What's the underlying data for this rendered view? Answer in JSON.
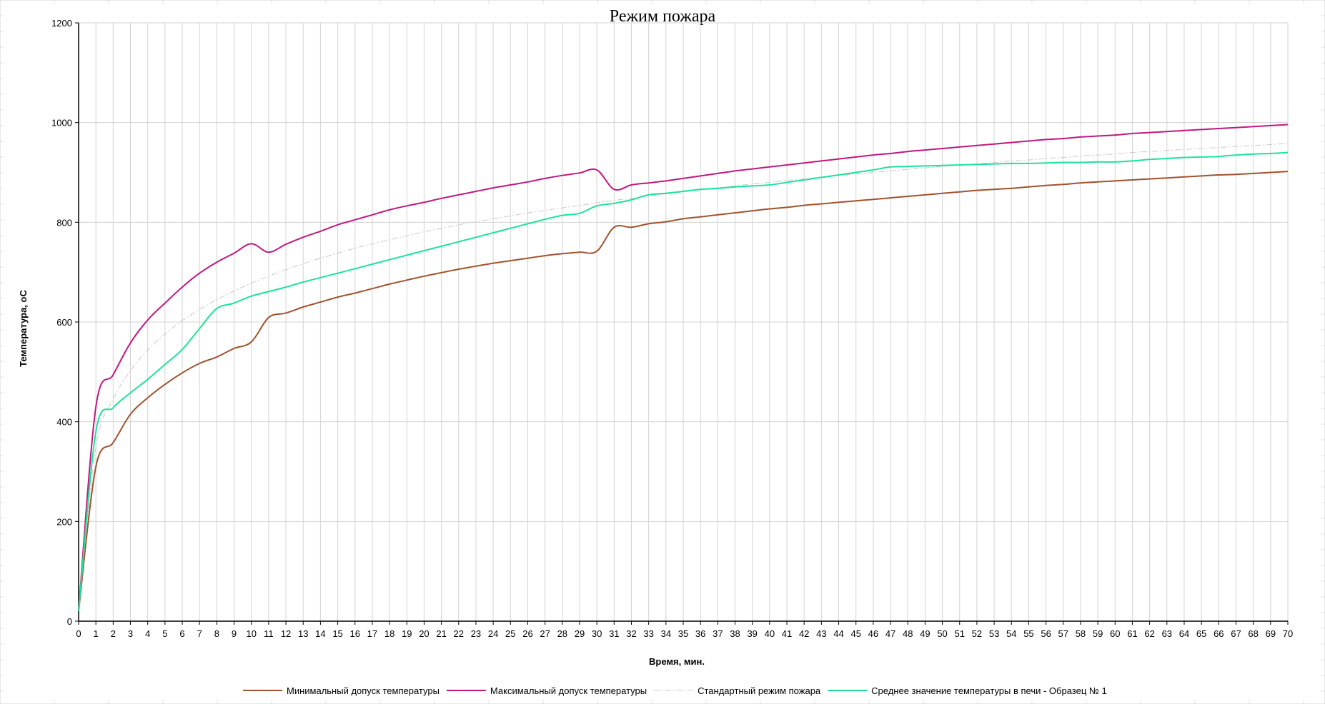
{
  "chart_data": {
    "type": "line",
    "title": "Режим пожара",
    "xlabel": "Время, мин.",
    "ylabel": "Температура, оС",
    "xlim": [
      0,
      70
    ],
    "ylim": [
      0,
      1200
    ],
    "x_ticks": [
      0,
      1,
      2,
      3,
      4,
      5,
      6,
      7,
      8,
      9,
      10,
      11,
      12,
      13,
      14,
      15,
      16,
      17,
      18,
      19,
      20,
      21,
      22,
      23,
      24,
      25,
      26,
      27,
      28,
      29,
      30,
      31,
      32,
      33,
      34,
      35,
      36,
      37,
      38,
      39,
      40,
      41,
      42,
      43,
      44,
      45,
      46,
      47,
      48,
      49,
      50,
      51,
      52,
      53,
      54,
      55,
      56,
      57,
      58,
      59,
      60,
      61,
      62,
      63,
      64,
      65,
      66,
      67,
      68,
      69,
      70
    ],
    "y_ticks": [
      0,
      200,
      400,
      600,
      800,
      1000,
      1200
    ],
    "grid": true,
    "legend_position": "bottom",
    "series": [
      {
        "name": "Минимальный допуск температуры",
        "color": "#a0522d",
        "style": "solid",
        "x": [
          0,
          1,
          2,
          3,
          4,
          5,
          6,
          7,
          8,
          9,
          10,
          11,
          12,
          13,
          14,
          15,
          16,
          17,
          18,
          19,
          20,
          21,
          22,
          23,
          24,
          25,
          26,
          27,
          28,
          29,
          30,
          31,
          32,
          33,
          34,
          35,
          36,
          37,
          38,
          39,
          40,
          41,
          42,
          43,
          44,
          45,
          46,
          47,
          48,
          49,
          50,
          51,
          52,
          53,
          54,
          55,
          56,
          57,
          58,
          59,
          60,
          61,
          62,
          63,
          64,
          65,
          66,
          67,
          68,
          69,
          70
        ],
        "values": [
          20,
          310,
          358,
          415,
          448,
          475,
          498,
          517,
          530,
          547,
          560,
          609,
          618,
          630,
          640,
          650,
          658,
          667,
          676,
          684,
          692,
          699,
          706,
          712,
          718,
          723,
          728,
          733,
          737,
          740,
          742,
          790,
          790,
          797,
          801,
          807,
          811,
          815,
          819,
          823,
          827,
          830,
          834,
          837,
          840,
          843,
          846,
          849,
          852,
          855,
          858,
          861,
          864,
          866,
          868,
          871,
          874,
          876,
          879,
          881,
          883,
          885,
          887,
          889,
          891,
          893,
          895,
          896,
          898,
          900,
          902
        ]
      },
      {
        "name": "Максимальный допуск температуры",
        "color": "#c0187f",
        "style": "solid",
        "x": [
          0,
          1,
          2,
          3,
          4,
          5,
          6,
          7,
          8,
          9,
          10,
          11,
          12,
          13,
          14,
          15,
          16,
          17,
          18,
          19,
          20,
          21,
          22,
          23,
          24,
          25,
          26,
          27,
          28,
          29,
          30,
          31,
          32,
          33,
          34,
          35,
          36,
          37,
          38,
          39,
          40,
          41,
          42,
          43,
          44,
          45,
          46,
          47,
          48,
          49,
          50,
          51,
          52,
          53,
          54,
          55,
          56,
          57,
          58,
          59,
          60,
          61,
          62,
          63,
          64,
          65,
          66,
          67,
          68,
          69,
          70
        ],
        "values": [
          20,
          430,
          494,
          558,
          604,
          638,
          670,
          698,
          720,
          738,
          757,
          740,
          756,
          770,
          782,
          795,
          805,
          815,
          825,
          833,
          840,
          848,
          855,
          862,
          869,
          875,
          881,
          888,
          894,
          899,
          905,
          866,
          875,
          879,
          883,
          888,
          893,
          898,
          903,
          907,
          911,
          915,
          919,
          923,
          927,
          931,
          935,
          938,
          942,
          945,
          948,
          951,
          954,
          957,
          960,
          963,
          966,
          968,
          971,
          973,
          975,
          978,
          980,
          982,
          984,
          986,
          988,
          990,
          992,
          994,
          996
        ]
      },
      {
        "name": "Стандартный режим пожара",
        "color": "#c8c8c8",
        "style": "dash-dot",
        "x": [
          0,
          1,
          2,
          3,
          4,
          5,
          6,
          7,
          8,
          9,
          10,
          11,
          12,
          13,
          14,
          15,
          16,
          17,
          18,
          19,
          20,
          21,
          22,
          23,
          24,
          25,
          26,
          27,
          28,
          29,
          30,
          31,
          32,
          33,
          34,
          35,
          36,
          37,
          38,
          39,
          40,
          41,
          42,
          43,
          44,
          45,
          46,
          47,
          48,
          49,
          50,
          51,
          52,
          53,
          54,
          55,
          56,
          57,
          58,
          59,
          60,
          61,
          62,
          63,
          64,
          65,
          66,
          67,
          68,
          69,
          70
        ],
        "values": [
          20,
          349,
          445,
          502,
          544,
          576,
          603,
          625,
          645,
          662,
          678,
          692,
          705,
          717,
          728,
          738,
          748,
          757,
          765,
          773,
          781,
          788,
          795,
          801,
          807,
          813,
          819,
          824,
          829,
          834,
          839,
          844,
          848,
          853,
          857,
          861,
          865,
          869,
          873,
          877,
          880,
          884,
          887,
          891,
          894,
          897,
          900,
          903,
          906,
          909,
          912,
          915,
          917,
          920,
          923,
          925,
          928,
          930,
          933,
          935,
          937,
          940,
          942,
          944,
          946,
          948,
          950,
          952,
          954,
          956,
          958
        ]
      },
      {
        "name": "Среднее значение температуры в печи - Образец № 1",
        "color": "#1de39a",
        "style": "solid",
        "x": [
          0,
          1,
          2,
          3,
          4,
          5,
          6,
          7,
          8,
          9,
          10,
          11,
          12,
          13,
          14,
          15,
          16,
          17,
          18,
          19,
          20,
          21,
          22,
          23,
          24,
          25,
          26,
          27,
          28,
          29,
          30,
          31,
          32,
          33,
          34,
          35,
          36,
          37,
          38,
          39,
          40,
          41,
          42,
          43,
          44,
          45,
          46,
          47,
          48,
          49,
          50,
          51,
          52,
          53,
          54,
          55,
          56,
          57,
          58,
          59,
          60,
          61,
          62,
          63,
          64,
          65,
          66,
          67,
          68,
          69,
          70
        ],
        "values": [
          20,
          380,
          428,
          458,
          485,
          515,
          545,
          587,
          627,
          638,
          652,
          661,
          670,
          680,
          689,
          698,
          707,
          716,
          725,
          734,
          743,
          752,
          761,
          770,
          779,
          788,
          797,
          806,
          814,
          818,
          833,
          838,
          845,
          855,
          858,
          862,
          866,
          868,
          871,
          873,
          875,
          880,
          885,
          890,
          895,
          900,
          905,
          911,
          912,
          913,
          914,
          915,
          916,
          917,
          918,
          918,
          919,
          920,
          920,
          921,
          921,
          923,
          926,
          928,
          930,
          931,
          932,
          935,
          937,
          938,
          940
        ]
      }
    ]
  }
}
